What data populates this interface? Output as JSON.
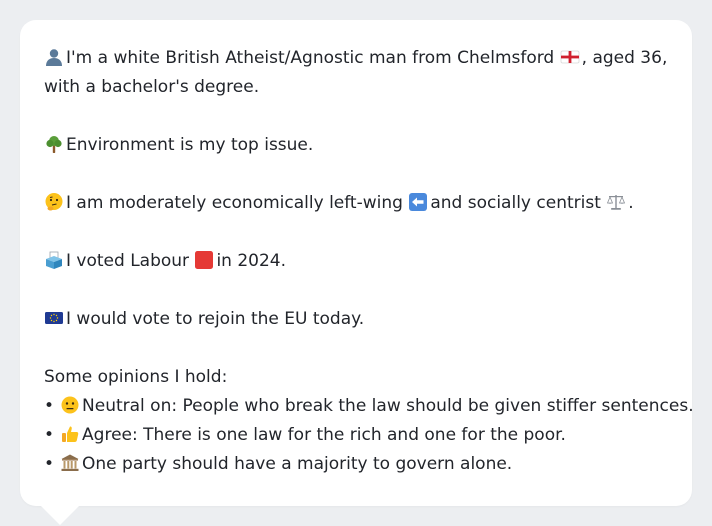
{
  "profile": {
    "identity_pre": "I'm a white British Atheist/Agnostic man from Chelmsford",
    "identity_post": ", aged 36,",
    "identity_line2": "with a bachelor's degree.",
    "top_issue": "Environment is my top issue.",
    "position_pre": "I am moderately economically left-wing",
    "position_mid": "and socially centrist",
    "position_post": ".",
    "vote_pre": "I voted Labour",
    "vote_post": "in 2024.",
    "eu": "I would vote to rejoin the EU today."
  },
  "opinions": {
    "heading": "Some opinions I hold:",
    "bullet": "•",
    "items": [
      {
        "icon": "neutral-face-icon",
        "text": "Neutral on: People who break the law should be given stiffer sentences."
      },
      {
        "icon": "thumbs-up-icon",
        "text": "Agree: There is one law for the rich and one for the poor."
      },
      {
        "icon": "classical-building-icon",
        "text": "One party should have a majority to govern alone."
      }
    ]
  },
  "icons": {
    "person": "person-silhouette-icon",
    "england_flag": "england-flag-icon",
    "tree": "deciduous-tree-icon",
    "thinking": "thinking-face-icon",
    "left_arrow": "left-arrow-icon",
    "scales": "balance-scale-icon",
    "ballot": "ballot-box-icon",
    "labour_square": "red-square-icon",
    "eu_flag": "eu-flag-icon"
  },
  "colors": {
    "background": "#eceef1",
    "card": "#ffffff",
    "text": "#22252b",
    "labour_red": "#e53935",
    "eu_blue": "#1f3a93"
  }
}
